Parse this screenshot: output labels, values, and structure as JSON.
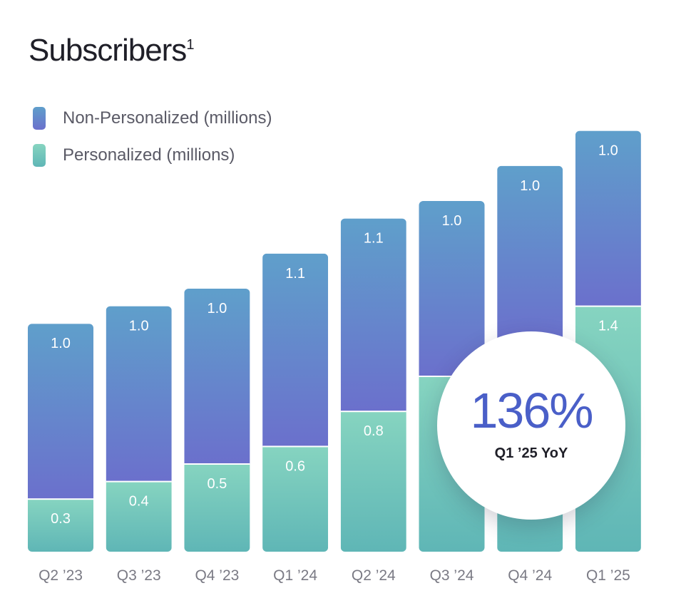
{
  "title": "Subscribers",
  "title_footnote": "1",
  "legend": [
    {
      "label": "Non-Personalized (millions)",
      "color_top": "#5f9fcb",
      "color_bottom": "#6b70cc"
    },
    {
      "label": "Personalized (millions)",
      "color_top": "#86d4c0",
      "color_bottom": "#5fb6b6"
    }
  ],
  "badge": {
    "value": "136%",
    "label": "Q1 ’25 YoY"
  },
  "chart_data": {
    "type": "bar",
    "stacked": true,
    "categories": [
      "Q2 ’23",
      "Q3 ’23",
      "Q4 ’23",
      "Q1 ’24",
      "Q2 ’24",
      "Q3 ’24",
      "Q4 ’24",
      "Q1 ’25"
    ],
    "series": [
      {
        "name": "Personalized (millions)",
        "values": [
          0.3,
          0.4,
          0.5,
          0.6,
          0.8,
          1.0,
          1.2,
          1.4
        ],
        "labels": [
          "0.3",
          "0.4",
          "0.5",
          "0.6",
          "0.8",
          "1.0",
          "1.2",
          "1.4"
        ]
      },
      {
        "name": "Non-Personalized (millions)",
        "values": [
          1.0,
          1.0,
          1.0,
          1.1,
          1.1,
          1.0,
          1.0,
          1.0
        ],
        "labels": [
          "1.0",
          "1.0",
          "1.0",
          "1.1",
          "1.1",
          "1.0",
          "1.0",
          "1.0"
        ]
      }
    ],
    "title": "Subscribers",
    "ylim": [
      0,
      2.4
    ],
    "grid": false,
    "legend_position": "top-left"
  }
}
